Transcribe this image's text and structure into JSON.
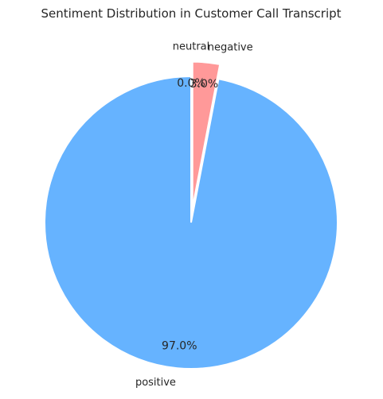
{
  "chart_data": {
    "type": "pie",
    "title": "Sentiment Distribution in Customer Call Transcript",
    "categories": [
      "positive",
      "negative",
      "neutral"
    ],
    "values": [
      97.0,
      3.0,
      0.0
    ],
    "value_labels": [
      "97.0%",
      "3.0%",
      "0.0%"
    ],
    "colors": [
      "#66b3ff",
      "#ff9999",
      "#99ff99"
    ],
    "explode": [
      0,
      0.1,
      0.1
    ],
    "start_angle_deg": 90,
    "direction": "counterclockwise",
    "legend": "none"
  }
}
